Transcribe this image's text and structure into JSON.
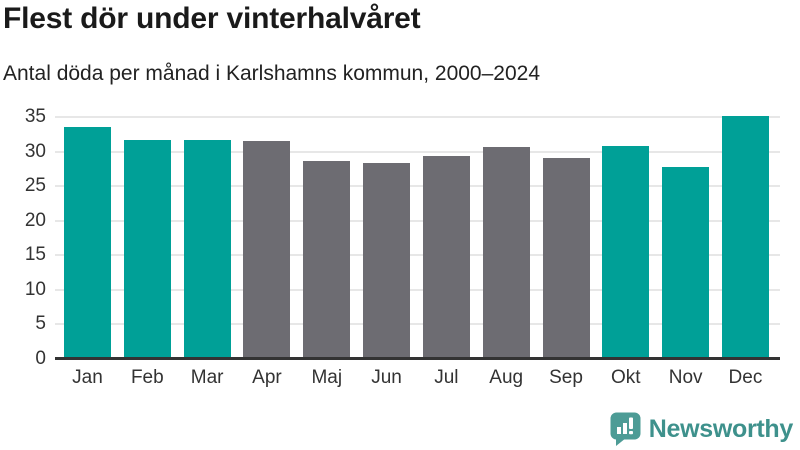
{
  "header": {
    "title": "Flest dör under vinterhalvåret",
    "subtitle": "Antal döda per månad i Karlshamns kommun, 2000–2024"
  },
  "chart_data": {
    "type": "bar",
    "title": "Flest dör under vinterhalvåret",
    "subtitle": "Antal döda per månad i Karlshamns kommun, 2000–2024",
    "categories": [
      "Jan",
      "Feb",
      "Mar",
      "Apr",
      "Maj",
      "Jun",
      "Jul",
      "Aug",
      "Sep",
      "Okt",
      "Nov",
      "Dec"
    ],
    "values": [
      33.5,
      31.7,
      31.7,
      31.5,
      28.7,
      28.3,
      29.3,
      30.6,
      29.1,
      30.8,
      27.8,
      35.1
    ],
    "bar_roles": [
      "winter",
      "winter",
      "winter",
      "summer",
      "summer",
      "summer",
      "summer",
      "summer",
      "summer",
      "winter",
      "winter",
      "winter"
    ],
    "xlabel": "",
    "ylabel": "",
    "ylim": [
      0,
      35
    ],
    "yticks": [
      0,
      5,
      10,
      15,
      20,
      25,
      30,
      35
    ],
    "grid": true,
    "legend": false,
    "colors": {
      "winter": "#00a097",
      "summer": "#6d6c72",
      "gridline": "#e7e7e7",
      "axis_line": "#333333",
      "tick_text": "#333333"
    }
  },
  "footer": {
    "brand": "Newsworthy",
    "logo_icon": "bar-chart-speech-bubble-icon",
    "logo_color": "#4d9c96",
    "brand_text_color": "#3e918c"
  }
}
